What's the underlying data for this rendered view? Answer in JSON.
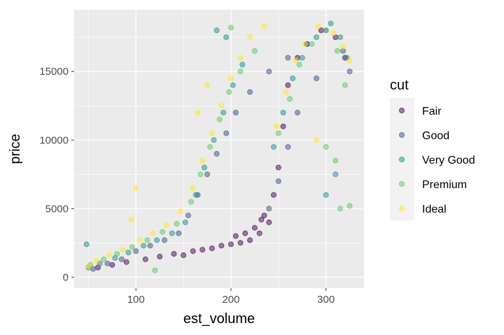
{
  "chart_data": {
    "type": "scatter",
    "title": "",
    "xlabel": "est_volume",
    "ylabel": "price",
    "xlim": [
      35,
      340
    ],
    "ylim": [
      -800,
      19500
    ],
    "x_ticks": [
      100,
      200,
      300
    ],
    "x_tick_labels": [
      "100",
      "200",
      "300"
    ],
    "y_ticks": [
      0,
      5000,
      10000,
      15000
    ],
    "y_tick_labels": [
      "0",
      "5000",
      "10000",
      "15000"
    ],
    "grid": true,
    "point_alpha": 0.5,
    "legend": {
      "title": "cut",
      "placement": "right"
    },
    "series": [
      {
        "name": "Fair",
        "color": "#440154",
        "points": [
          [
            60,
            700
          ],
          [
            75,
            900
          ],
          [
            90,
            1100
          ],
          [
            110,
            1300
          ],
          [
            125,
            1500
          ],
          [
            140,
            1700
          ],
          [
            150,
            1600
          ],
          [
            160,
            1900
          ],
          [
            170,
            2000
          ],
          [
            180,
            2100
          ],
          [
            190,
            2300
          ],
          [
            200,
            2400
          ],
          [
            210,
            2500
          ],
          [
            220,
            2700
          ],
          [
            230,
            3200
          ],
          [
            235,
            4500
          ],
          [
            240,
            4000
          ],
          [
            245,
            6000
          ],
          [
            250,
            8000
          ],
          [
            255,
            11000
          ],
          [
            260,
            14000
          ],
          [
            270,
            16000
          ],
          [
            280,
            17000
          ],
          [
            295,
            18000
          ],
          [
            310,
            17500
          ],
          [
            320,
            16000
          ],
          [
            205,
            3000
          ],
          [
            215,
            3200
          ],
          [
            225,
            3600
          ],
          [
            232,
            4200
          ]
        ]
      },
      {
        "name": "Good",
        "color": "#3B528B",
        "points": [
          [
            55,
            600
          ],
          [
            70,
            1000
          ],
          [
            85,
            1300
          ],
          [
            100,
            1900
          ],
          [
            115,
            2300
          ],
          [
            130,
            2700
          ],
          [
            145,
            3200
          ],
          [
            155,
            4500
          ],
          [
            165,
            6000
          ],
          [
            175,
            7500
          ],
          [
            185,
            9000
          ],
          [
            195,
            10500
          ],
          [
            205,
            12000
          ],
          [
            220,
            13500
          ],
          [
            240,
            15000
          ],
          [
            260,
            16000
          ],
          [
            280,
            17000
          ],
          [
            300,
            18000
          ],
          [
            318,
            16500
          ],
          [
            325,
            15000
          ],
          [
            240,
            5000
          ],
          [
            250,
            7000
          ],
          [
            260,
            9500
          ],
          [
            270,
            12000
          ],
          [
            290,
            14500
          ]
        ]
      },
      {
        "name": "Very Good",
        "color": "#21908C",
        "points": [
          [
            50,
            700
          ],
          [
            62,
            1000
          ],
          [
            78,
            1400
          ],
          [
            92,
            1800
          ],
          [
            108,
            2300
          ],
          [
            122,
            2700
          ],
          [
            138,
            3200
          ],
          [
            152,
            4000
          ],
          [
            163,
            6000
          ],
          [
            172,
            8000
          ],
          [
            182,
            10000
          ],
          [
            192,
            12000
          ],
          [
            202,
            14000
          ],
          [
            212,
            15500
          ],
          [
            245,
            9500
          ],
          [
            255,
            12000
          ],
          [
            265,
            14500
          ],
          [
            275,
            16000
          ],
          [
            290,
            17500
          ],
          [
            305,
            18500
          ],
          [
            315,
            17500
          ],
          [
            322,
            16000
          ],
          [
            185,
            18000
          ],
          [
            195,
            17500
          ],
          [
            48,
            2400
          ],
          [
            300,
            6000
          ],
          [
            310,
            7500
          ]
        ]
      },
      {
        "name": "Premium",
        "color": "#5DC863",
        "points": [
          [
            52,
            900
          ],
          [
            66,
            1300
          ],
          [
            80,
            1700
          ],
          [
            96,
            2200
          ],
          [
            112,
            2700
          ],
          [
            128,
            3300
          ],
          [
            143,
            3900
          ],
          [
            158,
            5500
          ],
          [
            168,
            7500
          ],
          [
            178,
            9500
          ],
          [
            188,
            11500
          ],
          [
            198,
            13500
          ],
          [
            210,
            15000
          ],
          [
            225,
            16500
          ],
          [
            250,
            10500
          ],
          [
            262,
            13000
          ],
          [
            272,
            15500
          ],
          [
            285,
            17000
          ],
          [
            300,
            18000
          ],
          [
            312,
            16500
          ],
          [
            320,
            14000
          ],
          [
            300,
            9500
          ],
          [
            310,
            8500
          ],
          [
            315,
            5000
          ],
          [
            325,
            5200
          ],
          [
            120,
            500
          ],
          [
            200,
            18200
          ]
        ]
      },
      {
        "name": "Ideal",
        "color": "#FDE725",
        "points": [
          [
            50,
            800
          ],
          [
            58,
            1200
          ],
          [
            72,
            1600
          ],
          [
            86,
            2000
          ],
          [
            100,
            6500
          ],
          [
            104,
            2700
          ],
          [
            118,
            3200
          ],
          [
            132,
            3800
          ],
          [
            147,
            4800
          ],
          [
            160,
            6500
          ],
          [
            170,
            8500
          ],
          [
            180,
            10500
          ],
          [
            190,
            12500
          ],
          [
            200,
            14500
          ],
          [
            210,
            16000
          ],
          [
            220,
            17500
          ],
          [
            235,
            18300
          ],
          [
            248,
            11000
          ],
          [
            258,
            13500
          ],
          [
            268,
            15800
          ],
          [
            278,
            17000
          ],
          [
            292,
            18300
          ],
          [
            308,
            17800
          ],
          [
            318,
            16800
          ],
          [
            325,
            15800
          ],
          [
            165,
            12000
          ],
          [
            175,
            14000
          ],
          [
            290,
            10000
          ],
          [
            95,
            4200
          ]
        ]
      }
    ]
  }
}
